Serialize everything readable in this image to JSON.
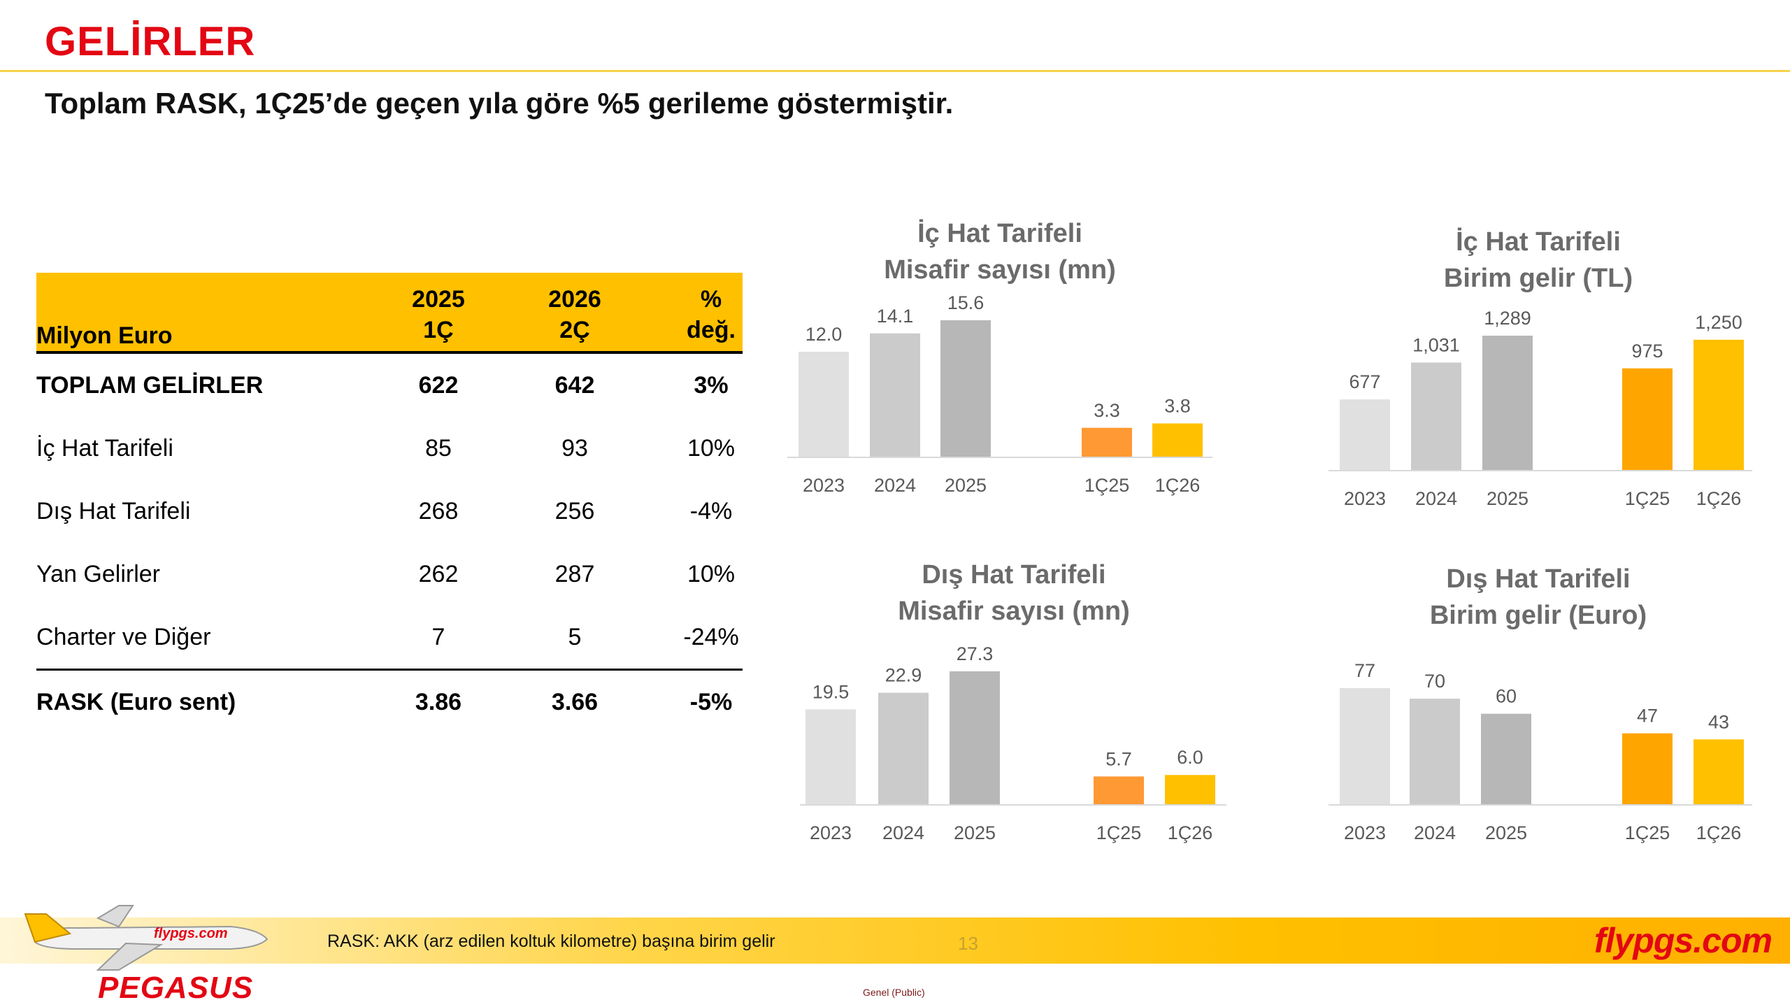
{
  "header": {
    "title": "GELİRLER",
    "subtitle": "Toplam RASK, 1Ç25’de geçen yıla göre %5 gerileme göstermiştir."
  },
  "table": {
    "headers": {
      "label": "Milyon Euro",
      "col1": [
        "2025",
        "1Ç"
      ],
      "col2": [
        "2026",
        "2Ç"
      ],
      "col3": [
        "%",
        "değ."
      ]
    },
    "rows": [
      {
        "label": "TOPLAM GELİRLER",
        "v1": "622",
        "v2": "642",
        "v3": "3%"
      },
      {
        "label": "İç Hat Tarifeli",
        "v1": "85",
        "v2": "93",
        "v3": "10%"
      },
      {
        "label": "Dış Hat Tarifeli",
        "v1": "268",
        "v2": "256",
        "v3": "-4%"
      },
      {
        "label": "Yan Gelirler",
        "v1": "262",
        "v2": "287",
        "v3": "10%"
      },
      {
        "label": "Charter ve Diğer",
        "v1": "7",
        "v2": "5",
        "v3": "-24%"
      },
      {
        "label": "RASK (Euro sent)",
        "v1": "3.86",
        "v2": "3.66",
        "v3": "-5%"
      }
    ]
  },
  "chart_data": [
    {
      "type": "bar",
      "title": [
        "İç Hat Tarifeli",
        "Misafir sayısı (mn)"
      ],
      "categories": [
        "2023",
        "2024",
        "2025",
        "1Ç25",
        "1Ç26"
      ],
      "values": [
        12.0,
        14.1,
        15.6,
        3.3,
        3.8
      ],
      "labels": [
        "12.0",
        "14.1",
        "15.6",
        "3.3",
        "3.8"
      ],
      "colors": [
        "#e0e0e0",
        "#cbcbcb",
        "#b7b7b7",
        "#ff9933",
        "#ffc000"
      ],
      "ylim": [
        0,
        15.6
      ],
      "grid": false,
      "legend": "none"
    },
    {
      "type": "bar",
      "title": [
        "İç Hat Tarifeli",
        "Birim gelir (TL)"
      ],
      "categories": [
        "2023",
        "2024",
        "2025",
        "1Ç25",
        "1Ç26"
      ],
      "values": [
        677,
        1031,
        1289,
        975,
        1250
      ],
      "labels": [
        "677",
        "1,031",
        "1,289",
        "975",
        "1,250"
      ],
      "colors": [
        "#e0e0e0",
        "#cbcbcb",
        "#b7b7b7",
        "#ffa500",
        "#ffc000"
      ],
      "ylim": [
        0,
        1289
      ],
      "grid": false,
      "legend": "none"
    },
    {
      "type": "bar",
      "title": [
        "Dış Hat Tarifeli",
        "Misafir sayısı (mn)"
      ],
      "categories": [
        "2023",
        "2024",
        "2025",
        "1Ç25",
        "1Ç26"
      ],
      "values": [
        19.5,
        22.9,
        27.3,
        5.7,
        6.0
      ],
      "labels": [
        "19.5",
        "22.9",
        "27.3",
        "5.7",
        "6.0"
      ],
      "colors": [
        "#e0e0e0",
        "#cbcbcb",
        "#b7b7b7",
        "#ff9933",
        "#ffc000"
      ],
      "ylim": [
        0,
        27.3
      ],
      "grid": false,
      "legend": "none"
    },
    {
      "type": "bar",
      "title": [
        "Dış Hat Tarifeli",
        "Birim gelir (Euro)"
      ],
      "categories": [
        "2023",
        "2024",
        "2025",
        "1Ç25",
        "1Ç26"
      ],
      "values": [
        77,
        70,
        60,
        47,
        43
      ],
      "labels": [
        "77",
        "70",
        "60",
        "47",
        "43"
      ],
      "colors": [
        "#e0e0e0",
        "#cbcbcb",
        "#b7b7b7",
        "#ffa500",
        "#ffc000"
      ],
      "ylim": [
        0,
        77
      ],
      "grid": false,
      "legend": "none"
    }
  ],
  "footer": {
    "note": "RASK: AKK (arz edilen koltuk kilometre) başına birim gelir",
    "page": "13",
    "brand": "flypgs.com",
    "logo": "PEGASUS",
    "plane_livery": "flypgs.com",
    "classification": "Genel (Public)",
    "colors": {
      "accent": "#e30613",
      "band": "#ffc000"
    }
  }
}
